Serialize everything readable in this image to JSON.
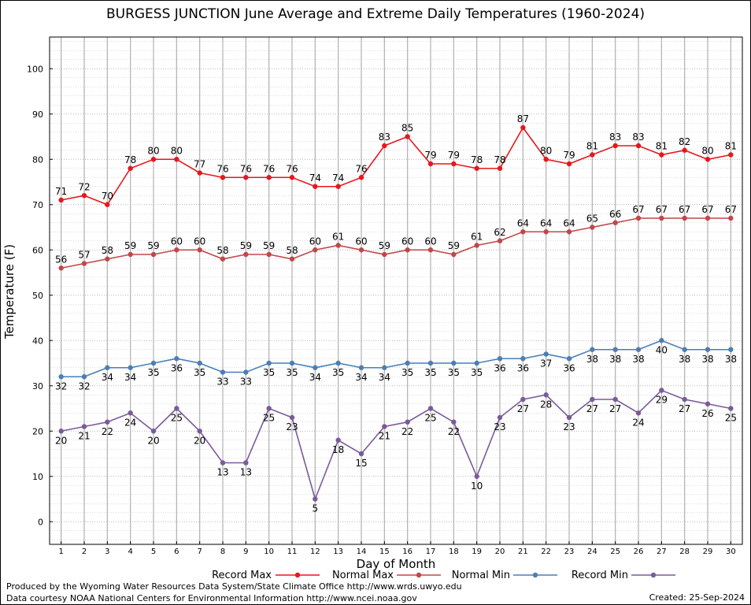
{
  "title": "BURGESS JUNCTION June Average and Extreme Daily Temperatures (1960-2024)",
  "footer": {
    "line1": "Produced by the Wyoming Water Resources Data System/State Climate Office http://www.wrds.uwyo.edu",
    "line2": "Data courtesy NOAA National Centers for Environmental Information http://www.ncei.noaa.gov",
    "created": "Created:  25-Sep-2024"
  },
  "chart_data": {
    "type": "line",
    "title": "BURGESS JUNCTION June Average and Extreme Daily Temperatures (1960-2024)",
    "xlabel": "Day of Month",
    "ylabel": "Temperature (F)",
    "x": [
      1,
      2,
      3,
      4,
      5,
      6,
      7,
      8,
      9,
      10,
      11,
      12,
      13,
      14,
      15,
      16,
      17,
      18,
      19,
      20,
      21,
      22,
      23,
      24,
      25,
      26,
      27,
      28,
      29,
      30
    ],
    "xlim": [
      0.5,
      30.5
    ],
    "ylim": [
      -5,
      107
    ],
    "yticks": [
      0,
      10,
      20,
      30,
      40,
      50,
      60,
      70,
      80,
      90,
      100
    ],
    "grid": true,
    "legend_position": "bottom",
    "series": [
      {
        "name": "Record Max",
        "color": "#e8171c",
        "label_pos": "above",
        "values": [
          71,
          72,
          70,
          78,
          80,
          80,
          77,
          76,
          76,
          76,
          76,
          74,
          74,
          76,
          83,
          85,
          79,
          79,
          78,
          78,
          87,
          80,
          79,
          81,
          83,
          83,
          81,
          82,
          80,
          81
        ]
      },
      {
        "name": "Normal Max",
        "color": "#c0474a",
        "label_pos": "above",
        "values": [
          56,
          57,
          58,
          59,
          59,
          60,
          60,
          58,
          59,
          59,
          58,
          60,
          61,
          60,
          59,
          60,
          60,
          59,
          61,
          62,
          64,
          64,
          64,
          65,
          66,
          67,
          67,
          67,
          67,
          67
        ]
      },
      {
        "name": "Normal Min",
        "color": "#4a7fb6",
        "label_pos": "below",
        "values": [
          32,
          32,
          34,
          34,
          35,
          36,
          35,
          33,
          33,
          35,
          35,
          34,
          35,
          34,
          34,
          35,
          35,
          35,
          35,
          36,
          36,
          37,
          36,
          38,
          38,
          38,
          40,
          38,
          38,
          38
        ]
      },
      {
        "name": "Record Min",
        "color": "#7b5a9a",
        "label_pos": "below",
        "values": [
          20,
          21,
          22,
          24,
          20,
          25,
          20,
          13,
          13,
          25,
          23,
          5,
          18,
          15,
          21,
          22,
          25,
          22,
          10,
          23,
          27,
          28,
          23,
          27,
          27,
          24,
          29,
          27,
          26,
          25
        ]
      }
    ]
  }
}
